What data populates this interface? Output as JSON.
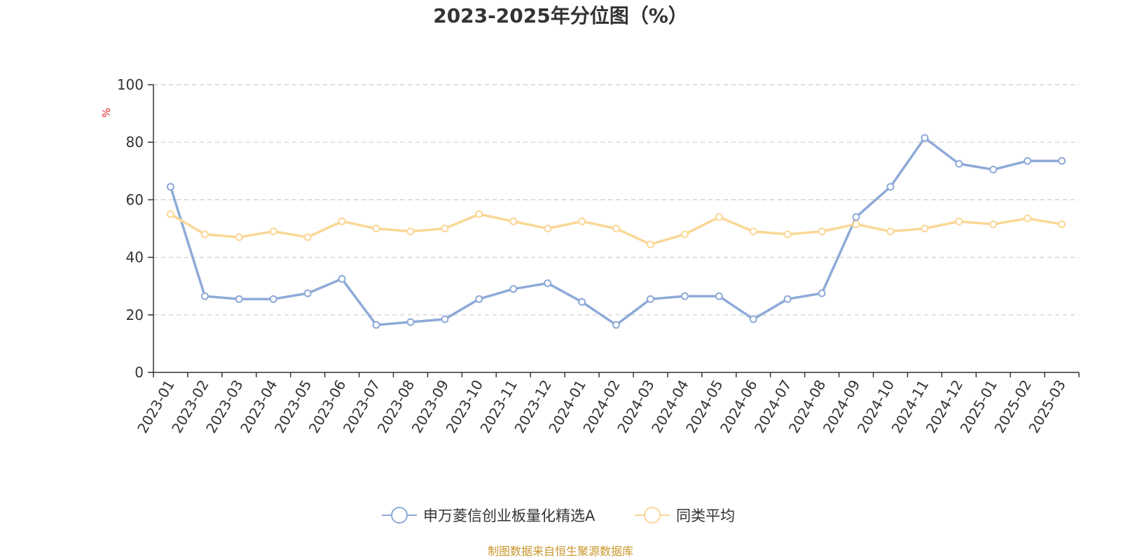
{
  "chart_data": {
    "type": "line",
    "title": "2023-2025年分位图（%）",
    "ylabel": "%",
    "xlabel": "",
    "ylim": [
      0,
      100
    ],
    "y_ticks": [
      0,
      20,
      40,
      60,
      80,
      100
    ],
    "grid": "horizontal dashed",
    "legend_position": "bottom-center",
    "categories": [
      "2023-01",
      "2023-02",
      "2023-03",
      "2023-04",
      "2023-05",
      "2023-06",
      "2023-07",
      "2023-08",
      "2023-09",
      "2023-10",
      "2023-11",
      "2023-12",
      "2024-01",
      "2024-02",
      "2024-03",
      "2024-04",
      "2024-05",
      "2024-06",
      "2024-07",
      "2024-08",
      "2024-09",
      "2024-10",
      "2024-11",
      "2024-12",
      "2025-01",
      "2025-02",
      "2025-03"
    ],
    "series": [
      {
        "name": "申万菱信创业板量化精选A",
        "color": "#8eaad8",
        "values": [
          64.5,
          26.5,
          25.5,
          25.5,
          27.5,
          32.5,
          16.5,
          17.5,
          18.5,
          25.5,
          29.0,
          31.0,
          24.5,
          16.5,
          25.5,
          26.5,
          26.5,
          18.5,
          25.5,
          27.5,
          54.0,
          64.5,
          81.5,
          72.5,
          70.5,
          73.5,
          73.5
        ]
      },
      {
        "name": "同类平均",
        "color": "#fad796",
        "values": [
          55.0,
          48.0,
          47.0,
          49.0,
          47.0,
          52.5,
          50.0,
          49.0,
          50.0,
          55.0,
          52.5,
          50.0,
          52.5,
          50.0,
          44.5,
          48.0,
          54.0,
          49.0,
          48.0,
          49.0,
          51.5,
          49.0,
          50.0,
          52.5,
          51.5,
          53.5,
          51.5
        ]
      }
    ]
  },
  "source_note": "制图数据来自恒生聚源数据库"
}
